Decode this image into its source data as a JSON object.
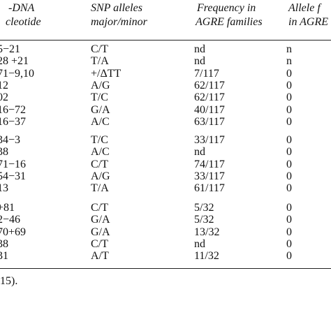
{
  "table": {
    "header": [
      [
        "-DNA",
        "SNP alleles",
        "Frequency in",
        "Allele f"
      ],
      [
        "cleotide",
        "major/minor",
        "AGRE families",
        "in AGRE"
      ]
    ],
    "groups": [
      [
        [
          "5−21",
          "C/T",
          "nd",
          "n"
        ],
        [
          "28 +21",
          "T/A",
          "nd",
          "n"
        ],
        [
          "71−9,10",
          "+/ΔTT",
          "7/117",
          "0"
        ],
        [
          "12",
          "A/G",
          "62/117",
          "0"
        ],
        [
          "02",
          "T/C",
          "62/117",
          "0"
        ],
        [
          "16−72",
          "G/A",
          "40/117",
          "0"
        ],
        [
          "16−37",
          "A/C",
          "63/117",
          "0"
        ]
      ],
      [
        [
          "34−3",
          "T/C",
          "33/117",
          "0"
        ],
        [
          "38",
          "A/C",
          "nd",
          "0"
        ],
        [
          "71−16",
          "C/T",
          "74/117",
          "0"
        ],
        [
          "54−31",
          "A/G",
          "33/117",
          "0"
        ],
        [
          "13",
          "T/A",
          "61/117",
          "0"
        ]
      ],
      [
        [
          "+81",
          "C/T",
          "5/32",
          "0"
        ],
        [
          "2−46",
          "G/A",
          "5/32",
          "0"
        ],
        [
          "70+69",
          "G/A",
          "13/32",
          "0"
        ],
        [
          "38",
          "C/T",
          "nd",
          "0"
        ],
        [
          "31",
          "A/T",
          "11/32",
          "0"
        ]
      ]
    ]
  },
  "footer": "15)."
}
